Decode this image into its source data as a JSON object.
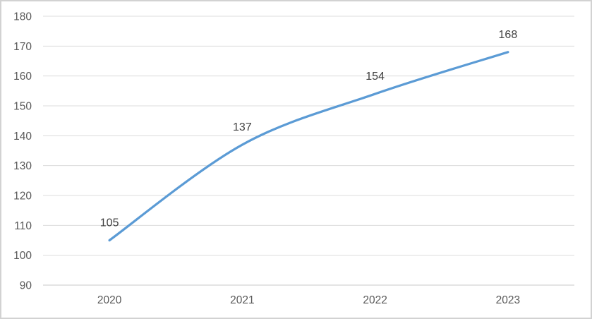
{
  "chart_data": {
    "type": "line",
    "title": "",
    "xlabel": "",
    "ylabel": "",
    "categories": [
      "2020",
      "2021",
      "2022",
      "2023"
    ],
    "values": [
      105,
      137,
      154,
      168
    ],
    "data_labels": [
      "105",
      "137",
      "154",
      "168"
    ],
    "yticks": [
      90,
      100,
      110,
      120,
      130,
      140,
      150,
      160,
      170,
      180
    ],
    "ylim": [
      90,
      180
    ],
    "grid": true,
    "smooth_line": true,
    "legend_position": "none",
    "colors": {
      "line": "#5B9BD5",
      "gridline": "#DCDCDC",
      "axis_line": "#C8C8C8",
      "tick_label": "#595959",
      "data_label": "#404040",
      "background": "#FFFFFF",
      "border": "#D2D2D2"
    }
  }
}
